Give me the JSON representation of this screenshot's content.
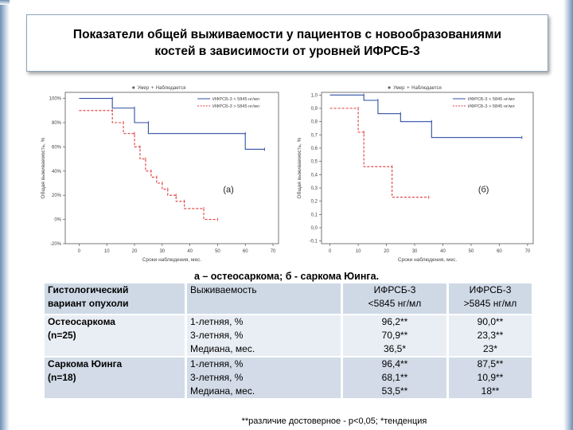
{
  "title": {
    "line1": "Показатели общей выживаемости у пациентов с новообразованиями",
    "line2": "костей в зависимости от уровней ИФРСБ-3"
  },
  "chart_data": [
    {
      "type": "line",
      "panel_label": "(а)",
      "legend_top": [
        "Умер",
        "Наблюдается"
      ],
      "legend_series": [
        "ИФРСБ-3 < 5845 нг/мл",
        "ИФРСБ-3 > 5845 нг/мл"
      ],
      "ylabel": "Общая выживаемость, %",
      "xlabel": "Сроки наблюдения, мес.",
      "yticks": [
        "100%",
        "80%",
        "60%",
        "40%",
        "20%",
        "0%",
        "-20%"
      ],
      "xticks": [
        "0",
        "10",
        "20",
        "30",
        "40",
        "50",
        "60",
        "70"
      ],
      "xlim": [
        -5,
        72
      ],
      "ylim": [
        -20,
        105
      ],
      "series": [
        {
          "name": "ИФРСБ-3 < 5845 нг/мл",
          "color": "#2f4fa3",
          "dash": false,
          "x": [
            0,
            12,
            12,
            20,
            20,
            25,
            25,
            60,
            60,
            67
          ],
          "y": [
            100,
            100,
            92,
            92,
            80,
            80,
            71,
            71,
            58,
            58
          ]
        },
        {
          "name": "ИФРСБ-3 > 5845 нг/мл",
          "color": "#e03a3a",
          "dash": true,
          "x": [
            0,
            12,
            12,
            16,
            16,
            20,
            20,
            22,
            22,
            24,
            24,
            26,
            26,
            28,
            28,
            30,
            30,
            32,
            32,
            35,
            35,
            38,
            38,
            45,
            45,
            50
          ],
          "y": [
            90,
            90,
            80,
            80,
            71,
            71,
            60,
            60,
            50,
            50,
            40,
            40,
            35,
            35,
            30,
            30,
            25,
            25,
            20,
            20,
            15,
            15,
            9,
            9,
            0,
            0
          ]
        }
      ]
    },
    {
      "type": "line",
      "panel_label": "(б)",
      "legend_top": [
        "Умер",
        "Наблюдается"
      ],
      "legend_series": [
        "ИФРСБ-3 < 5845 нг/мл",
        "ИФРСБ-3 > 5845 нг/мл"
      ],
      "ylabel": "Общая выживаемость, %",
      "xlabel": "Сроки наблюдения, мес.",
      "yticks": [
        "1,0",
        "0,9",
        "0,8",
        "0,7",
        "0,6",
        "0,5",
        "0,4",
        "0,3",
        "0,2",
        "0,1",
        "0,0",
        "-0,1"
      ],
      "xticks": [
        "0",
        "10",
        "20",
        "30",
        "40",
        "50",
        "60",
        "70"
      ],
      "xlim": [
        -3,
        72
      ],
      "ylim": [
        -0.12,
        1.02
      ],
      "series": [
        {
          "name": "ИФРСБ-3 < 5845 нг/мл",
          "color": "#2f4fa3",
          "dash": false,
          "x": [
            0,
            12,
            12,
            17,
            17,
            25,
            25,
            36,
            36,
            68
          ],
          "y": [
            1.0,
            1.0,
            0.96,
            0.96,
            0.86,
            0.86,
            0.8,
            0.8,
            0.68,
            0.68
          ]
        },
        {
          "name": "ИФРСБ-3 > 5845 нг/мл",
          "color": "#e03a3a",
          "dash": true,
          "x": [
            0,
            10,
            10,
            12,
            12,
            22,
            22,
            35
          ],
          "y": [
            0.9,
            0.9,
            0.72,
            0.72,
            0.46,
            0.46,
            0.23,
            0.23
          ]
        }
      ]
    }
  ],
  "caption": "а – остеосаркома; б - саркома Юинга.",
  "table": {
    "headers": [
      "Гистологический вариант опухоли",
      "Выживаемость",
      "ИФРСБ-3 <5845 нг/мл",
      "ИФРСБ-3 >5845 нг/мл"
    ],
    "header_parts": {
      "c1a": "Гистологический",
      "c1b": "вариант опухоли",
      "c3a": "ИФРСБ-3",
      "c3b": "<5845 нг/мл",
      "c4a": "ИФРСБ-3",
      "c4b": ">5845 нг/мл"
    },
    "groups": [
      {
        "name": "Остеосаркома",
        "n": "(n=25)",
        "rows": [
          {
            "metric": "1-летняя, %",
            "low": "96,2**",
            "high": "90,0**"
          },
          {
            "metric": "3-летняя, %",
            "low": "70,9**",
            "high": "23,3**"
          },
          {
            "metric": "Медиана, мес.",
            "low": "36,5*",
            "high": "23*"
          }
        ]
      },
      {
        "name": "Саркома Юинга",
        "n": "(n=18)",
        "rows": [
          {
            "metric": "1-летняя, %",
            "low": "96,4**",
            "high": "87,5**"
          },
          {
            "metric": "3-летняя, %",
            "low": "68,1**",
            "high": "10,9**"
          },
          {
            "metric": "Медиана, мес.",
            "low": "53,5**",
            "high": "18**"
          }
        ]
      }
    ]
  },
  "footnote": "**различие достоверное - p<0,05; *тенденция"
}
